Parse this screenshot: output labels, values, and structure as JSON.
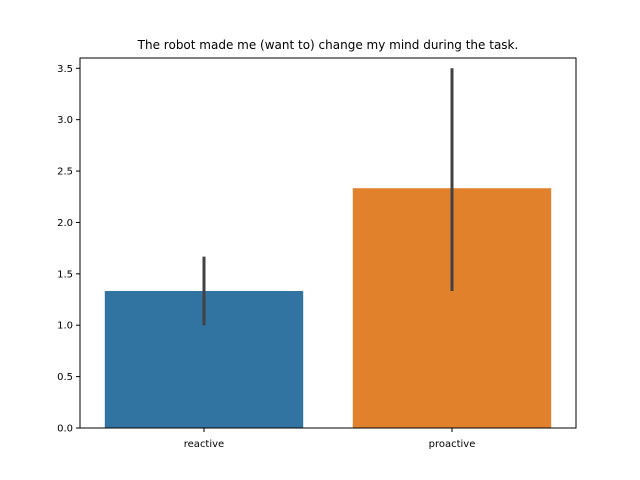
{
  "chart_data": {
    "type": "bar",
    "title": "The robot made me (want to) change my mind during the task.",
    "xlabel": "",
    "ylabel": "",
    "categories": [
      "reactive",
      "proactive"
    ],
    "values": [
      1.333,
      2.333
    ],
    "error_low": [
      1.0,
      1.333
    ],
    "error_high": [
      1.667,
      3.5
    ],
    "ylim": [
      0,
      3.6
    ],
    "yticks": [
      0.0,
      0.5,
      1.0,
      1.5,
      2.0,
      2.5,
      3.0,
      3.5
    ],
    "ytick_labels": [
      "0.0",
      "0.5",
      "1.0",
      "1.5",
      "2.0",
      "2.5",
      "3.0",
      "3.5"
    ],
    "colors": [
      "#3274a1",
      "#e1812c"
    ],
    "error_color": "#424242",
    "grid": false,
    "legend": "none"
  }
}
